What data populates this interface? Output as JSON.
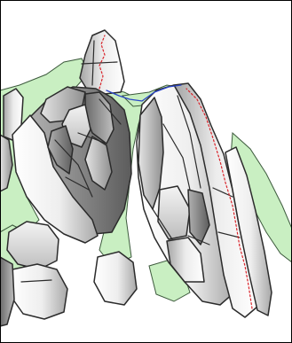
{
  "colors": {
    "background": "#ffffff",
    "vegetation": "#c9efc2",
    "rock_light": "#ffffff",
    "rock_mid": "#c2c2c2",
    "rock_dark": "#8a8a8a",
    "rock_darkest": "#646464",
    "outline": "#2b2b2b",
    "route_red": "#d9232a",
    "route_blue": "#2a45c8"
  },
  "routes": [
    {
      "name": "",
      "color": "route_red"
    },
    {
      "name": "",
      "color": "route_red"
    },
    {
      "name": "",
      "color": "route_blue"
    }
  ]
}
